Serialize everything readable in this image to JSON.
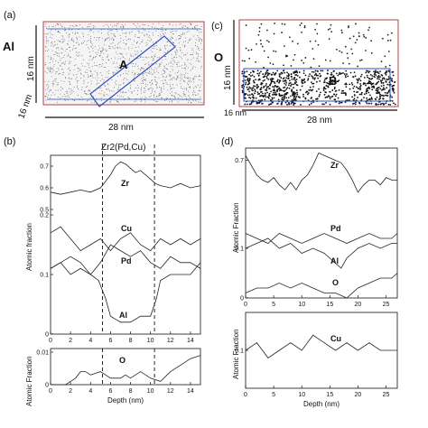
{
  "panels": {
    "a": {
      "label": "(a)",
      "element": "Al",
      "region": "A",
      "dim_vertical": "16 nm",
      "dim_depth": "16 nm",
      "dim_horizontal": "28 nm"
    },
    "c": {
      "label": "(c)",
      "element": "O",
      "region": "B",
      "dim_vertical": "16 nm",
      "dim_depth": "16 nm",
      "dim_horizontal": "28 nm"
    },
    "b": {
      "label": "(b)",
      "phase_label": "Zr2(Pd,Cu)",
      "ylabel": "Atomic fraction"
    },
    "b_lower": {
      "ylabel": "Atomic Fraction"
    },
    "d": {
      "label": "(d)",
      "ylabel": "Atomic Fraction"
    },
    "d_lower": {
      "ylabel": "Atomic Fraction"
    }
  },
  "chart_data": [
    {
      "id": "b_top",
      "type": "line",
      "xlabel": "",
      "ylabel": "Atomic fraction",
      "xlim": [
        0,
        15
      ],
      "ylim_top": [
        0.5,
        0.75
      ],
      "ylim_bottom": [
        0,
        0.2
      ],
      "x_ticks": [
        "0",
        "2",
        "4",
        "6",
        "8",
        "10",
        "12",
        "14"
      ],
      "y_ticks_top": [
        "0.5",
        "0.6",
        "0.7"
      ],
      "y_ticks_bottom": [
        "0",
        "0.1",
        "0.2"
      ],
      "vlines": [
        5.2,
        10.4
      ],
      "series": [
        {
          "name": "Zr",
          "x": [
            0,
            1,
            2,
            3,
            4,
            5,
            5.5,
            6,
            6.5,
            7,
            7.5,
            8,
            8.5,
            9,
            9.5,
            10,
            10.5,
            11,
            12,
            13,
            14,
            15
          ],
          "y": [
            0.58,
            0.57,
            0.58,
            0.59,
            0.58,
            0.6,
            0.63,
            0.66,
            0.7,
            0.72,
            0.71,
            0.69,
            0.67,
            0.68,
            0.66,
            0.64,
            0.62,
            0.61,
            0.6,
            0.62,
            0.6,
            0.61
          ]
        },
        {
          "name": "Cu",
          "x": [
            0,
            1,
            2,
            3,
            4,
            5,
            6,
            7,
            8,
            9,
            10,
            11,
            12,
            13,
            14,
            15
          ],
          "y": [
            0.17,
            0.18,
            0.16,
            0.14,
            0.15,
            0.16,
            0.14,
            0.16,
            0.17,
            0.15,
            0.14,
            0.16,
            0.15,
            0.16,
            0.15,
            0.16
          ]
        },
        {
          "name": "Pd",
          "x": [
            0,
            1,
            2,
            3,
            4,
            5,
            6,
            7,
            8,
            9,
            10,
            11,
            12,
            13,
            14,
            15
          ],
          "y": [
            0.11,
            0.12,
            0.13,
            0.12,
            0.1,
            0.12,
            0.15,
            0.14,
            0.13,
            0.14,
            0.12,
            0.11,
            0.13,
            0.12,
            0.12,
            0.11
          ]
        },
        {
          "name": "Al",
          "x": [
            0,
            1,
            2,
            3,
            4,
            4.8,
            5.5,
            6,
            7,
            8,
            9,
            10,
            10.6,
            11,
            12,
            13,
            14,
            15
          ],
          "y": [
            0.11,
            0.12,
            0.1,
            0.11,
            0.1,
            0.09,
            0.06,
            0.03,
            0.02,
            0.02,
            0.03,
            0.03,
            0.06,
            0.09,
            0.1,
            0.1,
            0.1,
            0.12
          ]
        }
      ]
    },
    {
      "id": "b_bottom",
      "type": "line",
      "xlabel": "Depth (nm)",
      "ylabel": "Atomic Fraction",
      "xlim": [
        0,
        15
      ],
      "ylim": [
        0,
        0.01
      ],
      "x_ticks": [
        "0",
        "2",
        "4",
        "6",
        "8",
        "10",
        "12",
        "14"
      ],
      "y_ticks": [
        "0",
        "0.01"
      ],
      "series": [
        {
          "name": "O",
          "x": [
            0,
            1,
            1.5,
            2,
            2.5,
            3,
            3.5,
            4,
            5,
            5.5,
            6,
            7,
            7.5,
            8,
            9,
            10,
            11,
            12,
            13,
            14,
            15
          ],
          "y": [
            0,
            0,
            0,
            0.001,
            0.002,
            0.004,
            0.004,
            0.003,
            0.004,
            0.003,
            0.002,
            0.002,
            0.003,
            0.002,
            0.004,
            0.002,
            0.001,
            0.004,
            0.006,
            0.008,
            0.009
          ]
        }
      ]
    },
    {
      "id": "d_top",
      "type": "line",
      "xlabel": "",
      "ylabel": "Atomic Fraction",
      "xlim": [
        0,
        27
      ],
      "ylim_top": [
        0.5,
        0.75
      ],
      "ylim_bottom": [
        0,
        0.2
      ],
      "x_ticks": [
        "0",
        "5",
        "10",
        "15",
        "20",
        "25"
      ],
      "y_ticks_top": [
        "0.7"
      ],
      "y_ticks_bottom": [
        "0",
        "0.1"
      ],
      "series": [
        {
          "name": "Zr",
          "x": [
            0,
            1,
            2,
            3,
            4,
            5,
            6,
            7,
            8,
            9,
            10,
            11,
            12,
            13,
            14,
            15,
            16,
            17,
            18,
            19,
            20,
            21,
            22,
            23,
            24,
            25,
            26,
            27
          ],
          "y": [
            0.72,
            0.68,
            0.64,
            0.62,
            0.61,
            0.63,
            0.6,
            0.58,
            0.61,
            0.58,
            0.62,
            0.64,
            0.68,
            0.73,
            0.72,
            0.71,
            0.7,
            0.69,
            0.66,
            0.62,
            0.57,
            0.6,
            0.62,
            0.62,
            0.6,
            0.63,
            0.62,
            0.62
          ]
        },
        {
          "name": "Pd",
          "x": [
            0,
            2,
            4,
            6,
            8,
            10,
            12,
            14,
            16,
            18,
            20,
            22,
            24,
            26,
            27
          ],
          "y": [
            0.13,
            0.12,
            0.11,
            0.13,
            0.12,
            0.11,
            0.12,
            0.13,
            0.12,
            0.11,
            0.12,
            0.13,
            0.12,
            0.12,
            0.13
          ]
        },
        {
          "name": "Al",
          "x": [
            0,
            2,
            4,
            6,
            8,
            10,
            12,
            14,
            16,
            17,
            18,
            20,
            22,
            24,
            26,
            27
          ],
          "y": [
            0.1,
            0.11,
            0.12,
            0.1,
            0.11,
            0.09,
            0.1,
            0.09,
            0.07,
            0.06,
            0.08,
            0.1,
            0.11,
            0.1,
            0.11,
            0.11
          ]
        },
        {
          "name": "O",
          "x": [
            0,
            2,
            4,
            6,
            8,
            10,
            12,
            14,
            16,
            18,
            20,
            22,
            24,
            26,
            27
          ],
          "y": [
            0.01,
            0.02,
            0.02,
            0.03,
            0.02,
            0.03,
            0.02,
            0.01,
            0.01,
            0.0,
            0.02,
            0.03,
            0.04,
            0.04,
            0.05
          ]
        }
      ]
    },
    {
      "id": "d_bottom",
      "type": "line",
      "xlabel": "Depth (nm)",
      "ylabel": "Atomic Fraction",
      "xlim": [
        0,
        27
      ],
      "ylim": [
        0.05,
        0.15
      ],
      "x_ticks": [
        "0",
        "5",
        "10",
        "15",
        "20",
        "25"
      ],
      "y_ticks": [
        "0.1"
      ],
      "series": [
        {
          "name": "Cu",
          "x": [
            0,
            2,
            4,
            6,
            8,
            10,
            12,
            14,
            16,
            18,
            20,
            22,
            24,
            26,
            27
          ],
          "y": [
            0.1,
            0.11,
            0.09,
            0.1,
            0.11,
            0.1,
            0.12,
            0.11,
            0.1,
            0.11,
            0.1,
            0.11,
            0.1,
            0.1,
            0.1
          ]
        }
      ]
    }
  ]
}
